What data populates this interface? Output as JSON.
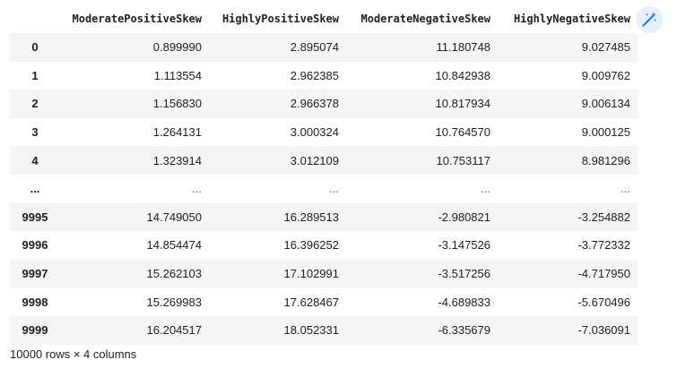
{
  "table": {
    "columns": [
      "ModeratePositiveSkew",
      "HighlyPositiveSkew",
      "ModerateNegativeSkew",
      "HighlyNegativeSkew"
    ],
    "rows": [
      {
        "index": "0",
        "values": [
          "0.899990",
          "2.895074",
          "11.180748",
          "9.027485"
        ]
      },
      {
        "index": "1",
        "values": [
          "1.113554",
          "2.962385",
          "10.842938",
          "9.009762"
        ]
      },
      {
        "index": "2",
        "values": [
          "1.156830",
          "2.966378",
          "10.817934",
          "9.006134"
        ]
      },
      {
        "index": "3",
        "values": [
          "1.264131",
          "3.000324",
          "10.764570",
          "9.000125"
        ]
      },
      {
        "index": "4",
        "values": [
          "1.323914",
          "3.012109",
          "10.753117",
          "8.981296"
        ]
      },
      {
        "index": "...",
        "values": [
          "...",
          "...",
          "...",
          "..."
        ]
      },
      {
        "index": "9995",
        "values": [
          "14.749050",
          "16.289513",
          "-2.980821",
          "-3.254882"
        ]
      },
      {
        "index": "9996",
        "values": [
          "14.854474",
          "16.396252",
          "-3.147526",
          "-3.772332"
        ]
      },
      {
        "index": "9997",
        "values": [
          "15.262103",
          "17.102991",
          "-3.517256",
          "-4.717950"
        ]
      },
      {
        "index": "9998",
        "values": [
          "15.269983",
          "17.628467",
          "-4.689833",
          "-5.670496"
        ]
      },
      {
        "index": "9999",
        "values": [
          "16.204517",
          "18.052331",
          "-6.335679",
          "-7.036091"
        ]
      }
    ]
  },
  "summary": "10000 rows × 4 columns",
  "toolbar": {
    "magic_icon": "magic-wand-icon",
    "icon_color": "#1a73e8",
    "background": "#e8f0fe"
  }
}
